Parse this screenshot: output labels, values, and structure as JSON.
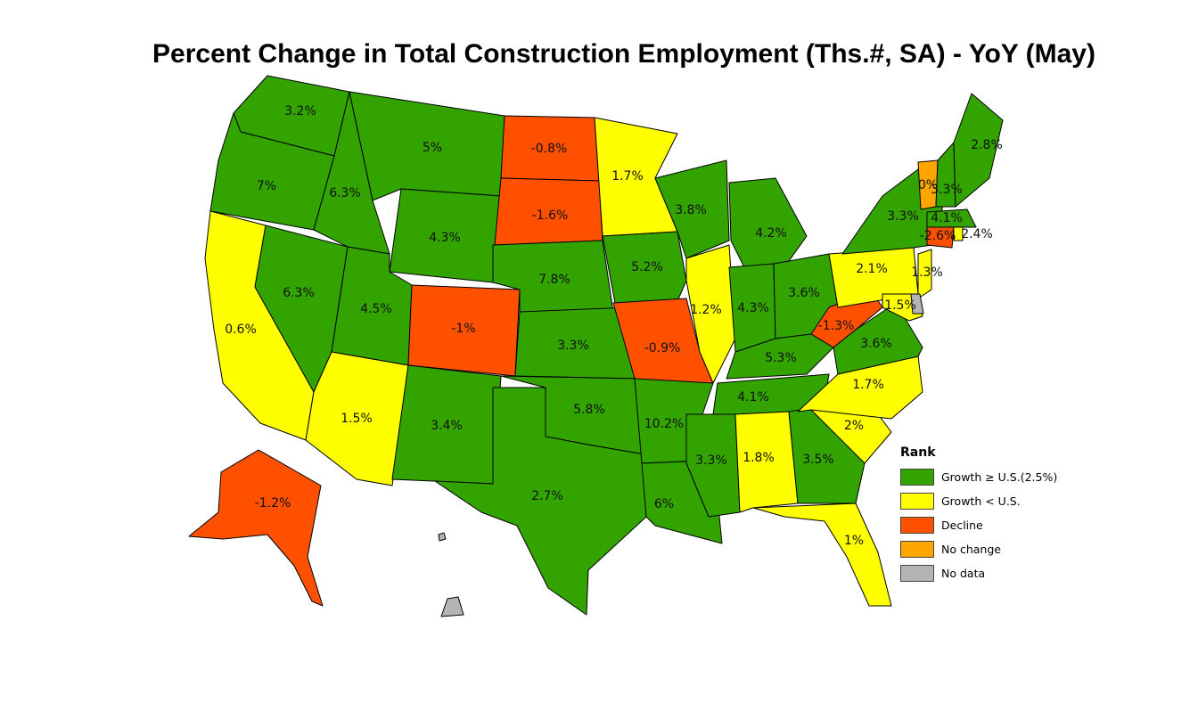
{
  "title": "Percent Change in Total Construction Employment (Ths.#, SA) - YoY (May)",
  "colors": {
    "growth_above": "#33a300",
    "growth_below": "#ffff00",
    "decline": "#ff5000",
    "no_change": "#ffa500",
    "no_data": "#b4b4b4"
  },
  "legend": {
    "title": "Rank",
    "items": [
      {
        "key": "growth_above",
        "label": "Growth ≥ U.S.(2.5%)"
      },
      {
        "key": "growth_below",
        "label": "Growth < U.S."
      },
      {
        "key": "decline",
        "label": "Decline"
      },
      {
        "key": "no_change",
        "label": "No change"
      },
      {
        "key": "no_data",
        "label": "No data"
      }
    ]
  },
  "states": [
    {
      "id": "WA",
      "value": "3.2%",
      "category": "growth_above"
    },
    {
      "id": "OR",
      "value": "7%",
      "category": "growth_above"
    },
    {
      "id": "CA",
      "value": "0.6%",
      "category": "growth_below"
    },
    {
      "id": "NV",
      "value": "6.3%",
      "category": "growth_above"
    },
    {
      "id": "ID",
      "value": "6.3%",
      "category": "growth_above"
    },
    {
      "id": "MT",
      "value": "5%",
      "category": "growth_above"
    },
    {
      "id": "WY",
      "value": "4.3%",
      "category": "growth_above"
    },
    {
      "id": "UT",
      "value": "4.5%",
      "category": "growth_above"
    },
    {
      "id": "AZ",
      "value": "1.5%",
      "category": "growth_below"
    },
    {
      "id": "CO",
      "value": "-1%",
      "category": "decline"
    },
    {
      "id": "NM",
      "value": "3.4%",
      "category": "growth_above"
    },
    {
      "id": "ND",
      "value": "-0.8%",
      "category": "decline"
    },
    {
      "id": "SD",
      "value": "-1.6%",
      "category": "decline"
    },
    {
      "id": "NE",
      "value": "7.8%",
      "category": "growth_above"
    },
    {
      "id": "KS",
      "value": "3.3%",
      "category": "growth_above"
    },
    {
      "id": "OK",
      "value": "5.8%",
      "category": "growth_above"
    },
    {
      "id": "TX",
      "value": "2.7%",
      "category": "growth_above"
    },
    {
      "id": "MN",
      "value": "1.7%",
      "category": "growth_below"
    },
    {
      "id": "IA",
      "value": "5.2%",
      "category": "growth_above"
    },
    {
      "id": "MO",
      "value": "-0.9%",
      "category": "decline"
    },
    {
      "id": "AR",
      "value": "10.2%",
      "category": "growth_above"
    },
    {
      "id": "LA",
      "value": "6%",
      "category": "growth_above"
    },
    {
      "id": "WI",
      "value": "3.8%",
      "category": "growth_above"
    },
    {
      "id": "IL",
      "value": "1.2%",
      "category": "growth_below"
    },
    {
      "id": "MI",
      "value": "4.2%",
      "category": "growth_above"
    },
    {
      "id": "IN",
      "value": "4.3%",
      "category": "growth_above"
    },
    {
      "id": "OH",
      "value": "3.6%",
      "category": "growth_above"
    },
    {
      "id": "KY",
      "value": "5.3%",
      "category": "growth_above"
    },
    {
      "id": "TN",
      "value": "4.1%",
      "category": "growth_above"
    },
    {
      "id": "MS",
      "value": "3.3%",
      "category": "growth_above"
    },
    {
      "id": "AL",
      "value": "1.8%",
      "category": "growth_below"
    },
    {
      "id": "GA",
      "value": "3.5%",
      "category": "growth_above"
    },
    {
      "id": "FL",
      "value": "1%",
      "category": "growth_below"
    },
    {
      "id": "SC",
      "value": "2%",
      "category": "growth_below"
    },
    {
      "id": "NC",
      "value": "1.7%",
      "category": "growth_below"
    },
    {
      "id": "VA",
      "value": "3.6%",
      "category": "growth_above"
    },
    {
      "id": "WV",
      "value": "-1.3%",
      "category": "decline"
    },
    {
      "id": "PA",
      "value": "2.1%",
      "category": "growth_below"
    },
    {
      "id": "NY",
      "value": "3.3%",
      "category": "growth_above"
    },
    {
      "id": "VT",
      "value": "0%",
      "category": "no_change"
    },
    {
      "id": "NH",
      "value": "3.3%",
      "category": "growth_above"
    },
    {
      "id": "ME",
      "value": "2.8%",
      "category": "growth_above"
    },
    {
      "id": "MA",
      "value": "4.1%",
      "category": "growth_above"
    },
    {
      "id": "CT",
      "value": "-2.6%",
      "category": "decline"
    },
    {
      "id": "RI",
      "value": "2.4%",
      "category": "growth_below"
    },
    {
      "id": "NJ",
      "value": "1.3%",
      "category": "growth_below"
    },
    {
      "id": "MD",
      "value": "1.5%",
      "category": "growth_below"
    },
    {
      "id": "DE",
      "value": "",
      "category": "no_data"
    },
    {
      "id": "AK",
      "value": "-1.2%",
      "category": "decline"
    },
    {
      "id": "HI",
      "value": "",
      "category": "no_data"
    }
  ]
}
